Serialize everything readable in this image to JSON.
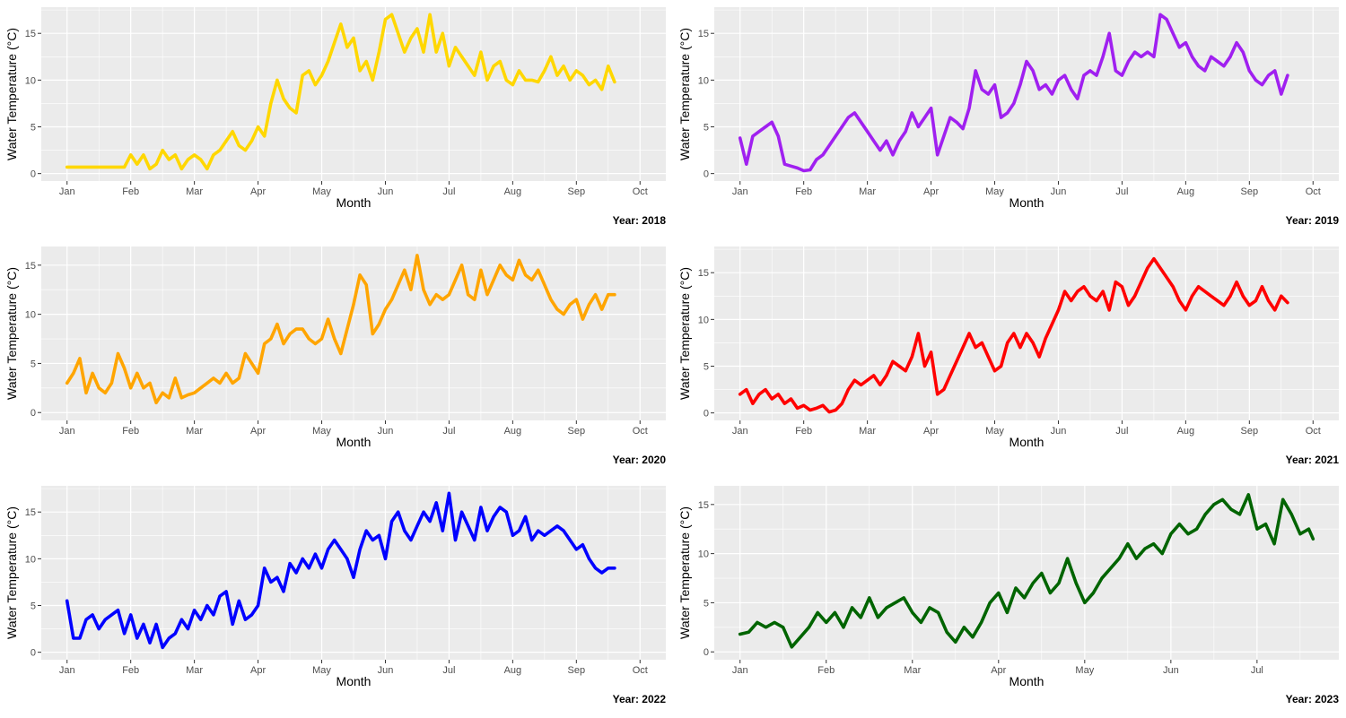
{
  "chart_data": [
    {
      "type": "line",
      "caption": "Year: 2018",
      "xlabel": "Month",
      "ylabel": "Water Temperature (°C)",
      "color": "#FFD700",
      "x_ticks": [
        "Jan",
        "Feb",
        "Mar",
        "Apr",
        "May",
        "Jun",
        "Jul",
        "Aug",
        "Sep",
        "Oct"
      ],
      "x_range_months": [
        0,
        9
      ],
      "ylim": [
        -0.8,
        17.8
      ],
      "y_ticks": [
        0,
        5,
        10,
        15
      ],
      "x": [
        0,
        0.3,
        0.6,
        0.9,
        1.0,
        1.1,
        1.2,
        1.3,
        1.4,
        1.5,
        1.6,
        1.7,
        1.8,
        1.9,
        2.0,
        2.1,
        2.2,
        2.3,
        2.4,
        2.5,
        2.6,
        2.7,
        2.8,
        2.9,
        3.0,
        3.1,
        3.2,
        3.3,
        3.4,
        3.5,
        3.6,
        3.7,
        3.8,
        3.9,
        4.0,
        4.1,
        4.2,
        4.3,
        4.4,
        4.5,
        4.6,
        4.7,
        4.8,
        4.9,
        5.0,
        5.1,
        5.2,
        5.3,
        5.4,
        5.5,
        5.6,
        5.7,
        5.8,
        5.9,
        6.0,
        6.1,
        6.2,
        6.3,
        6.4,
        6.5,
        6.6,
        6.7,
        6.8,
        6.9,
        7.0,
        7.1,
        7.2,
        7.3,
        7.4,
        7.5,
        7.6,
        7.7,
        7.8,
        7.9,
        8.0,
        8.1,
        8.2,
        8.3,
        8.4,
        8.5,
        8.6
      ],
      "y": [
        0.7,
        0.7,
        0.7,
        0.7,
        2.0,
        1.0,
        2.0,
        0.5,
        1.0,
        2.5,
        1.5,
        2.0,
        0.5,
        1.5,
        2.0,
        1.5,
        0.5,
        2.0,
        2.5,
        3.5,
        4.5,
        3.0,
        2.5,
        3.5,
        5.0,
        4.0,
        7.5,
        10.0,
        8.0,
        7.0,
        6.5,
        10.5,
        11.0,
        9.5,
        10.5,
        12.0,
        14.0,
        16.0,
        13.5,
        14.5,
        11.0,
        12.0,
        10.0,
        13.0,
        16.5,
        17.0,
        15.0,
        13.0,
        14.5,
        15.5,
        13.0,
        17.0,
        13.0,
        15.0,
        11.5,
        13.5,
        12.5,
        11.5,
        10.5,
        13.0,
        10.0,
        11.5,
        12.0,
        10.0,
        9.5,
        11.0,
        10.0,
        10.0,
        9.8,
        11.0,
        12.5,
        10.5,
        11.5,
        10.0,
        11.0,
        10.5,
        9.5,
        10.0,
        9.0,
        11.5,
        9.8
      ]
    },
    {
      "type": "line",
      "caption": "Year: 2019",
      "xlabel": "Month",
      "ylabel": "Water Temperature (°C)",
      "color": "#A020F0",
      "x_ticks": [
        "Jan",
        "Feb",
        "Mar",
        "Apr",
        "May",
        "Jun",
        "Jul",
        "Aug",
        "Sep",
        "Oct"
      ],
      "x_range_months": [
        0,
        9
      ],
      "ylim": [
        -0.8,
        17.8
      ],
      "y_ticks": [
        0,
        5,
        10,
        15
      ],
      "x": [
        0,
        0.1,
        0.2,
        0.3,
        0.4,
        0.5,
        0.6,
        0.7,
        0.8,
        0.9,
        1.0,
        1.1,
        1.2,
        1.3,
        1.4,
        1.5,
        1.6,
        1.7,
        1.8,
        1.9,
        2.0,
        2.1,
        2.2,
        2.3,
        2.4,
        2.5,
        2.6,
        2.7,
        2.8,
        2.9,
        3.0,
        3.1,
        3.2,
        3.3,
        3.4,
        3.5,
        3.6,
        3.7,
        3.8,
        3.9,
        4.0,
        4.1,
        4.2,
        4.3,
        4.4,
        4.5,
        4.6,
        4.7,
        4.8,
        4.9,
        5.0,
        5.1,
        5.2,
        5.3,
        5.4,
        5.5,
        5.6,
        5.7,
        5.8,
        5.9,
        6.0,
        6.1,
        6.2,
        6.3,
        6.4,
        6.5,
        6.6,
        6.7,
        6.8,
        6.9,
        7.0,
        7.1,
        7.2,
        7.3,
        7.4,
        7.5,
        7.6,
        7.7,
        7.8,
        7.9,
        8.0,
        8.1,
        8.2,
        8.3,
        8.4,
        8.5,
        8.6
      ],
      "y": [
        3.8,
        1.0,
        4.0,
        4.5,
        5.0,
        5.5,
        4.0,
        1.0,
        0.8,
        0.6,
        0.3,
        0.4,
        1.5,
        2.0,
        3.0,
        4.0,
        5.0,
        6.0,
        6.5,
        5.5,
        4.5,
        3.5,
        2.5,
        3.5,
        2.0,
        3.5,
        4.5,
        6.5,
        5.0,
        6.0,
        7.0,
        2.0,
        4.0,
        6.0,
        5.5,
        4.8,
        7.0,
        11.0,
        9.0,
        8.5,
        9.5,
        6.0,
        6.5,
        7.5,
        9.5,
        12.0,
        11.0,
        9.0,
        9.5,
        8.5,
        10.0,
        10.5,
        9.0,
        8.0,
        10.5,
        11.0,
        10.5,
        12.5,
        15.0,
        11.0,
        10.5,
        12.0,
        13.0,
        12.5,
        13.0,
        12.5,
        17.0,
        16.5,
        15.0,
        13.5,
        14.0,
        12.5,
        11.5,
        11.0,
        12.5,
        12.0,
        11.5,
        12.5,
        14.0,
        13.0,
        11.0,
        10.0,
        9.5,
        10.5,
        11.0,
        8.5,
        10.5
      ]
    },
    {
      "type": "line",
      "caption": "Year: 2020",
      "xlabel": "Month",
      "ylabel": "Water Temperature (°C)",
      "color": "#FFA500",
      "x_ticks": [
        "Jan",
        "Feb",
        "Mar",
        "Apr",
        "May",
        "Jun",
        "Jul",
        "Aug",
        "Sep",
        "Oct"
      ],
      "x_range_months": [
        0,
        9
      ],
      "ylim": [
        -0.8,
        16.9
      ],
      "y_ticks": [
        0,
        5,
        10,
        15
      ],
      "x": [
        0,
        0.1,
        0.2,
        0.3,
        0.4,
        0.5,
        0.6,
        0.7,
        0.8,
        0.9,
        1.0,
        1.1,
        1.2,
        1.3,
        1.4,
        1.5,
        1.6,
        1.7,
        1.8,
        1.9,
        2.0,
        2.1,
        2.2,
        2.3,
        2.4,
        2.5,
        2.6,
        2.7,
        2.8,
        2.9,
        3.0,
        3.1,
        3.2,
        3.3,
        3.4,
        3.5,
        3.6,
        3.7,
        3.8,
        3.9,
        4.0,
        4.1,
        4.2,
        4.3,
        4.4,
        4.5,
        4.6,
        4.7,
        4.8,
        4.9,
        5.0,
        5.1,
        5.2,
        5.3,
        5.4,
        5.5,
        5.6,
        5.7,
        5.8,
        5.9,
        6.0,
        6.1,
        6.2,
        6.3,
        6.4,
        6.5,
        6.6,
        6.7,
        6.8,
        6.9,
        7.0,
        7.1,
        7.2,
        7.3,
        7.4,
        7.5,
        7.6,
        7.7,
        7.8,
        7.9,
        8.0,
        8.1,
        8.2,
        8.3,
        8.4,
        8.5,
        8.6
      ],
      "y": [
        3.0,
        4.0,
        5.5,
        2.0,
        4.0,
        2.5,
        2.0,
        3.0,
        6.0,
        4.5,
        2.5,
        4.0,
        2.5,
        3.0,
        1.0,
        2.0,
        1.5,
        3.5,
        1.5,
        1.8,
        2.0,
        2.5,
        3.0,
        3.5,
        3.0,
        4.0,
        3.0,
        3.5,
        6.0,
        5.0,
        4.0,
        7.0,
        7.5,
        9.0,
        7.0,
        8.0,
        8.5,
        8.5,
        7.5,
        7.0,
        7.5,
        9.5,
        7.5,
        6.0,
        8.5,
        11.0,
        14.0,
        13.0,
        8.0,
        9.0,
        10.5,
        11.5,
        13.0,
        14.5,
        12.5,
        16.0,
        12.5,
        11.0,
        12.0,
        11.5,
        12.0,
        13.5,
        15.0,
        12.0,
        11.5,
        14.5,
        12.0,
        13.5,
        15.0,
        14.0,
        13.5,
        15.5,
        14.0,
        13.5,
        14.5,
        13.0,
        11.5,
        10.5,
        10.0,
        11.0,
        11.5,
        9.5,
        11.0,
        12.0,
        10.5,
        12.0,
        12.0
      ]
    },
    {
      "type": "line",
      "caption": "Year: 2021",
      "xlabel": "Month",
      "ylabel": "Water Temperature (°C)",
      "color": "#FF0000",
      "x_ticks": [
        "Jan",
        "Feb",
        "Mar",
        "Apr",
        "May",
        "Jun",
        "Jul",
        "Aug",
        "Sep",
        "Oct"
      ],
      "x_range_months": [
        0,
        9
      ],
      "ylim": [
        -0.8,
        17.8
      ],
      "y_ticks": [
        0,
        5,
        10,
        15
      ],
      "x": [
        0,
        0.1,
        0.2,
        0.3,
        0.4,
        0.5,
        0.6,
        0.7,
        0.8,
        0.9,
        1.0,
        1.1,
        1.2,
        1.3,
        1.4,
        1.5,
        1.6,
        1.7,
        1.8,
        1.9,
        2.0,
        2.1,
        2.2,
        2.3,
        2.4,
        2.5,
        2.6,
        2.7,
        2.8,
        2.9,
        3.0,
        3.1,
        3.2,
        3.3,
        3.4,
        3.5,
        3.6,
        3.7,
        3.8,
        3.9,
        4.0,
        4.1,
        4.2,
        4.3,
        4.4,
        4.5,
        4.6,
        4.7,
        4.8,
        4.9,
        5.0,
        5.1,
        5.2,
        5.3,
        5.4,
        5.5,
        5.6,
        5.7,
        5.8,
        5.9,
        6.0,
        6.1,
        6.2,
        6.3,
        6.4,
        6.5,
        6.6,
        6.7,
        6.8,
        6.9,
        7.0,
        7.1,
        7.2,
        7.3,
        7.4,
        7.5,
        7.6,
        7.7,
        7.8,
        7.9,
        8.0,
        8.1,
        8.2,
        8.3,
        8.4,
        8.5,
        8.6
      ],
      "y": [
        2.0,
        2.5,
        1.0,
        2.0,
        2.5,
        1.5,
        2.0,
        1.0,
        1.5,
        0.5,
        0.8,
        0.3,
        0.5,
        0.8,
        0.1,
        0.3,
        1.0,
        2.5,
        3.5,
        3.0,
        3.5,
        4.0,
        3.0,
        4.0,
        5.5,
        5.0,
        4.5,
        6.0,
        8.5,
        5.0,
        6.5,
        2.0,
        2.5,
        4.0,
        5.5,
        7.0,
        8.5,
        7.0,
        7.5,
        6.0,
        4.5,
        5.0,
        7.5,
        8.5,
        7.0,
        8.5,
        7.5,
        6.0,
        8.0,
        9.5,
        11.0,
        13.0,
        12.0,
        13.0,
        13.5,
        12.5,
        12.0,
        13.0,
        11.0,
        14.0,
        13.5,
        11.5,
        12.5,
        14.0,
        15.5,
        16.5,
        15.5,
        14.5,
        13.5,
        12.0,
        11.0,
        12.5,
        13.5,
        13.0,
        12.5,
        12.0,
        11.5,
        12.5,
        14.0,
        12.5,
        11.5,
        12.0,
        13.5,
        12.0,
        11.0,
        12.5,
        11.8
      ]
    },
    {
      "type": "line",
      "caption": "Year: 2022",
      "xlabel": "Month",
      "ylabel": "Water Temperature (°C)",
      "color": "#0000FF",
      "x_ticks": [
        "Jan",
        "Feb",
        "Mar",
        "Apr",
        "May",
        "Jun",
        "Jul",
        "Aug",
        "Sep",
        "Oct"
      ],
      "x_range_months": [
        0,
        9
      ],
      "ylim": [
        -0.8,
        17.8
      ],
      "y_ticks": [
        0,
        5,
        10,
        15
      ],
      "x": [
        0,
        0.1,
        0.2,
        0.3,
        0.4,
        0.5,
        0.6,
        0.7,
        0.8,
        0.9,
        1.0,
        1.1,
        1.2,
        1.3,
        1.4,
        1.5,
        1.6,
        1.7,
        1.8,
        1.9,
        2.0,
        2.1,
        2.2,
        2.3,
        2.4,
        2.5,
        2.6,
        2.7,
        2.8,
        2.9,
        3.0,
        3.1,
        3.2,
        3.3,
        3.4,
        3.5,
        3.6,
        3.7,
        3.8,
        3.9,
        4.0,
        4.1,
        4.2,
        4.3,
        4.4,
        4.5,
        4.6,
        4.7,
        4.8,
        4.9,
        5.0,
        5.1,
        5.2,
        5.3,
        5.4,
        5.5,
        5.6,
        5.7,
        5.8,
        5.9,
        6.0,
        6.1,
        6.2,
        6.3,
        6.4,
        6.5,
        6.6,
        6.7,
        6.8,
        6.9,
        7.0,
        7.1,
        7.2,
        7.3,
        7.4,
        7.5,
        7.6,
        7.7,
        7.8,
        7.9,
        8.0,
        8.1,
        8.2,
        8.3,
        8.4,
        8.5,
        8.6
      ],
      "y": [
        5.5,
        1.5,
        1.5,
        3.5,
        4.0,
        2.5,
        3.5,
        4.0,
        4.5,
        2.0,
        4.0,
        1.5,
        3.0,
        1.0,
        3.0,
        0.5,
        1.5,
        2.0,
        3.5,
        2.5,
        4.5,
        3.5,
        5.0,
        4.0,
        6.0,
        6.5,
        3.0,
        5.5,
        3.5,
        4.0,
        5.0,
        9.0,
        7.5,
        8.0,
        6.5,
        9.5,
        8.5,
        10.0,
        9.0,
        10.5,
        9.0,
        11.0,
        12.0,
        11.0,
        10.0,
        8.0,
        11.0,
        13.0,
        12.0,
        12.5,
        10.0,
        14.0,
        15.0,
        13.0,
        12.0,
        13.5,
        15.0,
        14.0,
        16.0,
        13.0,
        17.0,
        12.0,
        15.0,
        13.5,
        12.0,
        15.5,
        13.0,
        14.5,
        15.5,
        15.0,
        12.5,
        13.0,
        14.5,
        12.0,
        13.0,
        12.5,
        13.0,
        13.5,
        13.0,
        12.0,
        11.0,
        11.5,
        10.0,
        9.0,
        8.5,
        9.0,
        9.0
      ]
    },
    {
      "type": "line",
      "caption": "Year: 2023",
      "xlabel": "Month",
      "ylabel": "Water Temperature (°C)",
      "color": "#006400",
      "x_ticks": [
        "Jan",
        "Feb",
        "Mar",
        "Apr",
        "May",
        "Jun",
        "Jul"
      ],
      "x_range_months": [
        0,
        6.65
      ],
      "ylim": [
        -0.8,
        16.9
      ],
      "y_ticks": [
        0,
        5,
        10,
        15
      ],
      "x": [
        0,
        0.1,
        0.2,
        0.3,
        0.4,
        0.5,
        0.6,
        0.7,
        0.8,
        0.9,
        1.0,
        1.1,
        1.2,
        1.3,
        1.4,
        1.5,
        1.6,
        1.7,
        1.8,
        1.9,
        2.0,
        2.1,
        2.2,
        2.3,
        2.4,
        2.5,
        2.6,
        2.7,
        2.8,
        2.9,
        3.0,
        3.1,
        3.2,
        3.3,
        3.4,
        3.5,
        3.6,
        3.7,
        3.8,
        3.9,
        4.0,
        4.1,
        4.2,
        4.3,
        4.4,
        4.5,
        4.6,
        4.7,
        4.8,
        4.9,
        5.0,
        5.1,
        5.2,
        5.3,
        5.4,
        5.5,
        5.6,
        5.7,
        5.8,
        5.9,
        6.0,
        6.1,
        6.2,
        6.3,
        6.4,
        6.5,
        6.6,
        6.65
      ],
      "y": [
        1.8,
        2.0,
        3.0,
        2.5,
        3.0,
        2.5,
        0.5,
        1.5,
        2.5,
        4.0,
        3.0,
        4.0,
        2.5,
        4.5,
        3.5,
        5.5,
        3.5,
        4.5,
        5.0,
        5.5,
        4.0,
        3.0,
        4.5,
        4.0,
        2.0,
        1.0,
        2.5,
        1.5,
        3.0,
        5.0,
        6.0,
        4.0,
        6.5,
        5.5,
        7.0,
        8.0,
        6.0,
        7.0,
        9.5,
        7.0,
        5.0,
        6.0,
        7.5,
        8.5,
        9.5,
        11.0,
        9.5,
        10.5,
        11.0,
        10.0,
        12.0,
        13.0,
        12.0,
        12.5,
        14.0,
        15.0,
        15.5,
        14.5,
        14.0,
        16.0,
        12.5,
        13.0,
        11.0,
        15.5,
        14.0,
        12.0,
        12.5,
        11.5
      ]
    }
  ]
}
